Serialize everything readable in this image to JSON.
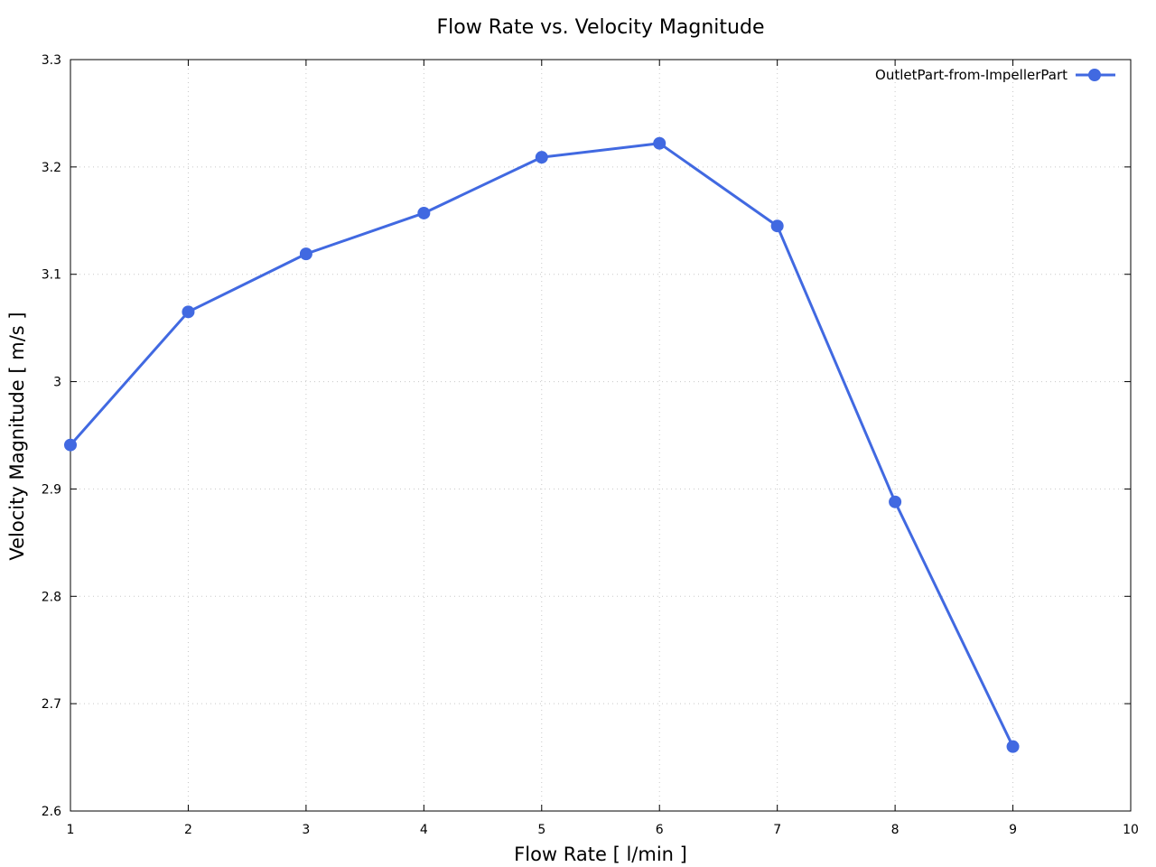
{
  "chart_data": {
    "type": "line",
    "title": "Flow Rate vs. Velocity Magnitude",
    "xlabel": "Flow Rate [ l/min ]",
    "ylabel": "Velocity Magnitude [ m/s ]",
    "xlim": [
      1,
      10
    ],
    "ylim": [
      2.6,
      3.3
    ],
    "x_ticks": [
      "1",
      "2",
      "3",
      "4",
      "5",
      "6",
      "7",
      "8",
      "9",
      "10"
    ],
    "y_ticks": [
      "2.6",
      "2.7",
      "2.8",
      "2.9",
      "3",
      "3.1",
      "3.2",
      "3.3"
    ],
    "grid": true,
    "legend_position": "top-right",
    "series": [
      {
        "name": "OutletPart-from-ImpellerPart",
        "color": "#4169e1",
        "x": [
          1,
          2,
          3,
          4,
          5,
          6,
          7,
          8,
          9
        ],
        "y": [
          2.941,
          3.065,
          3.119,
          3.157,
          3.209,
          3.222,
          3.145,
          2.888,
          2.66
        ]
      }
    ]
  }
}
